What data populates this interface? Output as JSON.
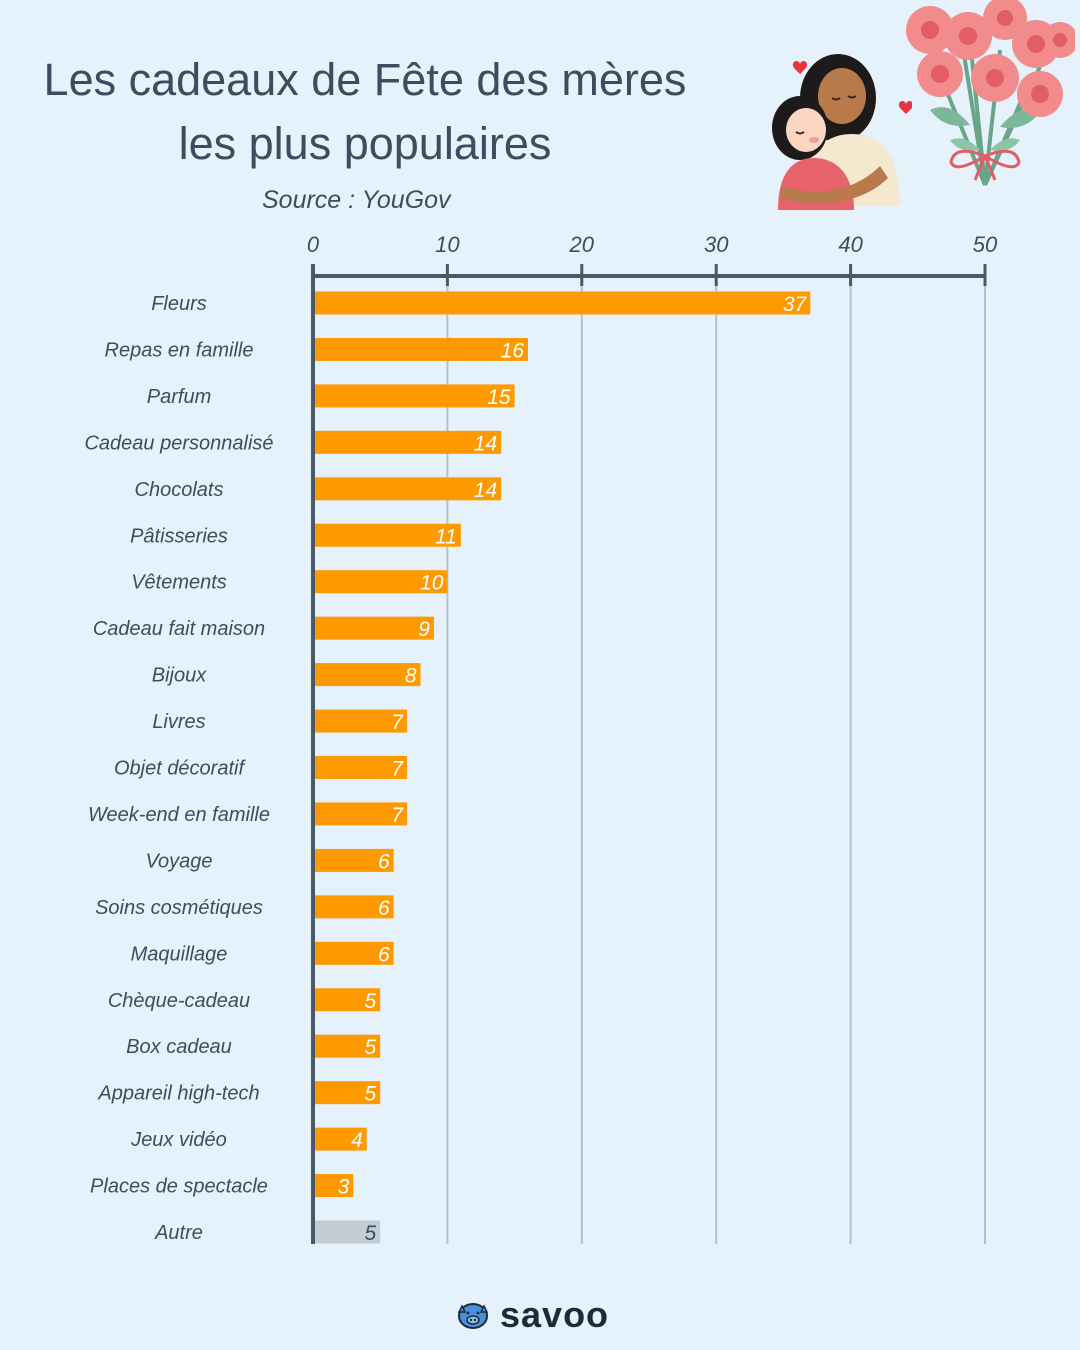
{
  "title_line1": "Les cadeaux de Fête des mères",
  "title_line2": "les plus populaires",
  "source": "Source : YouGov",
  "brand": "savoo",
  "colors": {
    "bar": "#ff9900",
    "bar_other": "#c2ccd4",
    "axis": "#4a5868",
    "grid": "#b4c0cb",
    "background": "#e6f2fb"
  },
  "icons": {
    "illustration_left": "mother-child-hug-icon",
    "illustration_right": "carnation-bouquet-icon",
    "logo": "piggy-bank-icon"
  },
  "chart_data": {
    "type": "bar",
    "orientation": "horizontal",
    "title": "Les cadeaux de Fête des mères les plus populaires",
    "xlim": [
      0,
      50
    ],
    "xticks": [
      0,
      10,
      20,
      30,
      40,
      50
    ],
    "x_axis_position": "top",
    "grid": true,
    "categories": [
      "Fleurs",
      "Repas en famille",
      "Parfum",
      "Cadeau personnalisé",
      "Chocolats",
      "Pâtisseries",
      "Vêtements",
      "Cadeau fait maison",
      "Bijoux",
      "Livres",
      "Objet décoratif",
      "Week-end en famille",
      "Voyage",
      "Soins cosmétiques",
      "Maquillage",
      "Chèque-cadeau",
      "Box cadeau",
      "Appareil high-tech",
      "Jeux vidéo",
      "Places de spectacle",
      "Autre"
    ],
    "values": [
      37,
      16,
      15,
      14,
      14,
      11,
      10,
      9,
      8,
      7,
      7,
      7,
      6,
      6,
      6,
      5,
      5,
      5,
      4,
      3,
      5
    ],
    "highlight_other": "Autre"
  }
}
